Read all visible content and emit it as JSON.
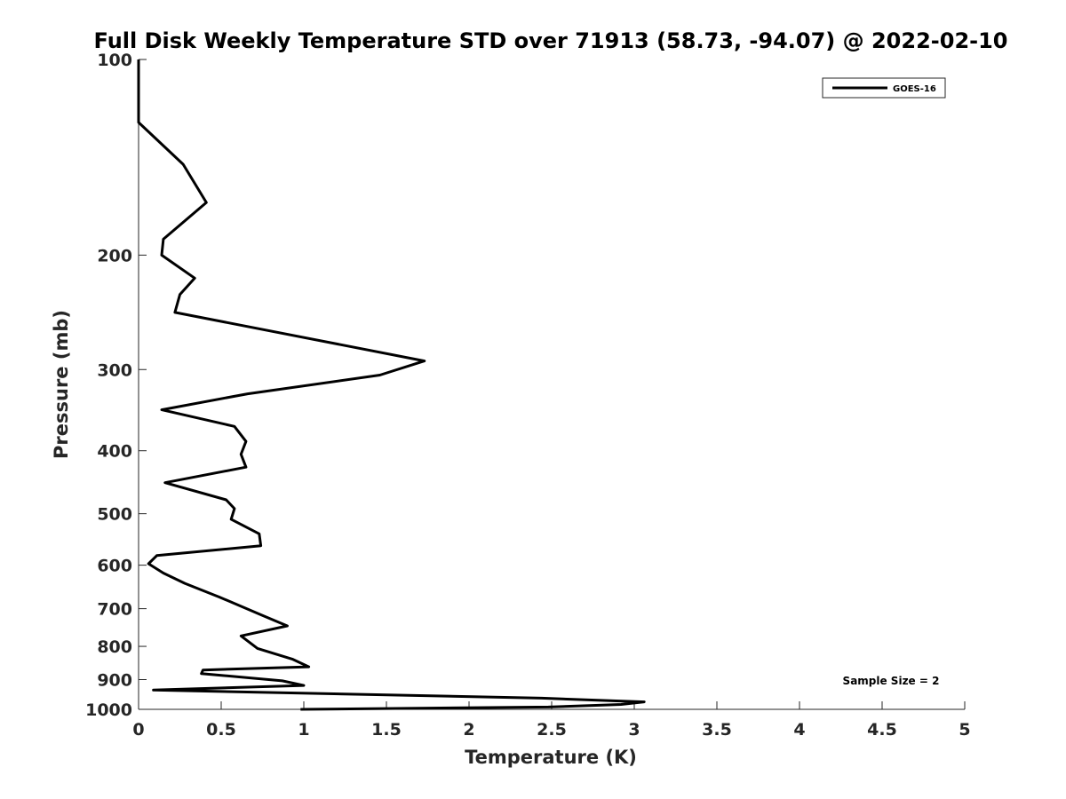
{
  "chart_data": {
    "type": "line",
    "title": "Full Disk Weekly Temperature STD over 71913 (58.73, -94.07) @ 2022-02-10",
    "xlabel": "Temperature (K)",
    "ylabel": "Pressure (mb)",
    "xlim": [
      0,
      5
    ],
    "ylim": [
      100,
      1000
    ],
    "y_scale": "log",
    "y_reversed": true,
    "x_ticks": [
      "0",
      "0.5",
      "1",
      "1.5",
      "2",
      "2.5",
      "3",
      "3.5",
      "4",
      "4.5",
      "5"
    ],
    "y_ticks": [
      "100",
      "200",
      "300",
      "400",
      "500",
      "600",
      "700",
      "800",
      "900",
      "1000"
    ],
    "grid": false,
    "legend_position": "top-right",
    "annotation": "Sample Size = 2",
    "series": [
      {
        "name": "GOES-16",
        "color": "#000000",
        "x": [
          0.0,
          0.0,
          0.27,
          0.41,
          0.15,
          0.14,
          0.34,
          0.25,
          0.22,
          1.73,
          1.46,
          0.66,
          0.14,
          0.58,
          0.65,
          0.62,
          0.65,
          0.16,
          0.53,
          0.58,
          0.56,
          0.73,
          0.74,
          0.11,
          0.06,
          0.15,
          0.28,
          0.49,
          0.75,
          0.9,
          0.62,
          0.72,
          0.93,
          1.03,
          0.39,
          0.38,
          0.87,
          1.0,
          0.09,
          2.44,
          3.06,
          2.92,
          2.48,
          0.98
        ],
        "y": [
          100,
          125,
          145,
          166,
          189,
          200,
          217,
          230,
          245,
          291,
          306,
          327,
          346,
          367,
          387,
          405,
          424,
          448,
          476,
          491,
          510,
          537,
          560,
          580,
          597,
          617,
          640,
          672,
          717,
          744,
          771,
          806,
          837,
          860,
          870,
          881,
          904,
          919,
          934,
          961,
          974,
          983,
          992,
          1000
        ]
      }
    ]
  }
}
